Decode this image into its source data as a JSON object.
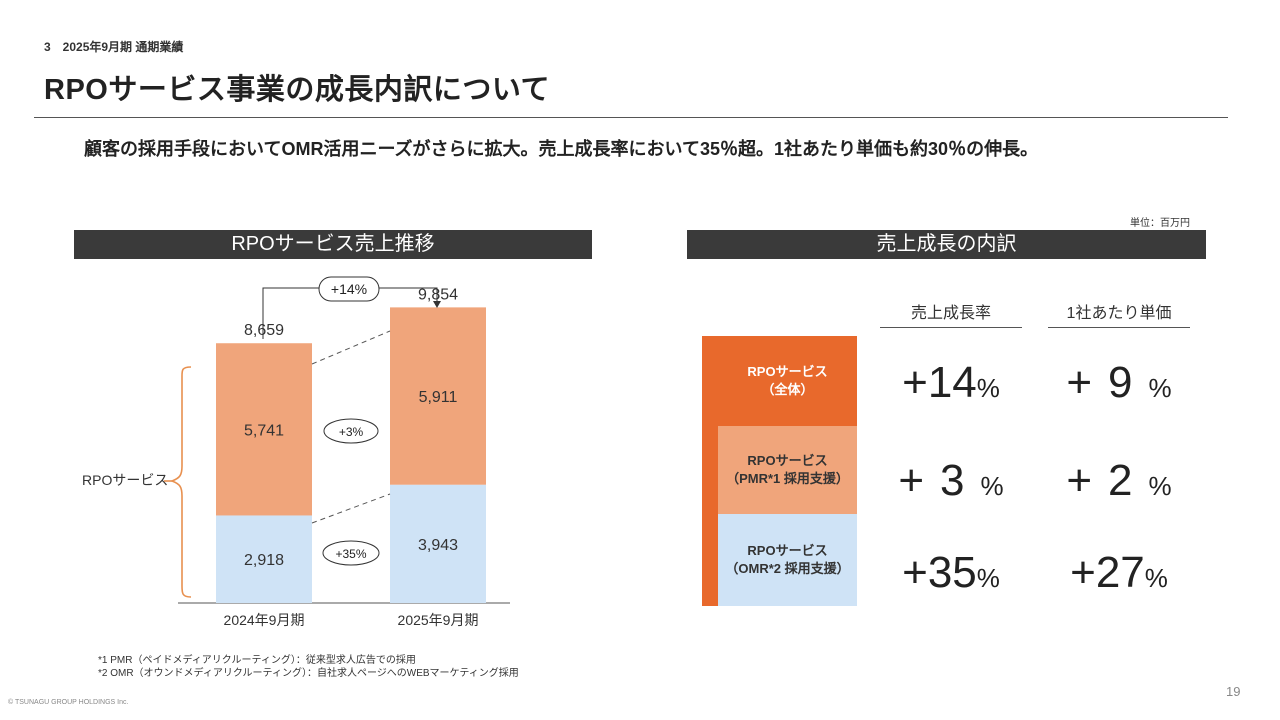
{
  "header": {
    "section": "3　2025年9月期 通期業績",
    "title": "RPOサービス事業の成長内訳について",
    "lead": "顧客の採用手段においてOMR活用ニーズがさらに拡大。売上成長率において35％超。1社あたり単価も約30％の伸長。",
    "unit": "単位：百万円"
  },
  "left_panel": {
    "heading": "RPOサービス売上推移",
    "bracket_label": "RPOサービス",
    "growth_total": "+14%",
    "growth_pmr": "+3%",
    "growth_omr": "+35%"
  },
  "right_panel": {
    "heading": "売上成長の内訳",
    "col_growth": "売上成長率",
    "col_unit_price": "1社あたり単価",
    "rows": [
      {
        "label_line1": "RPOサービス",
        "label_line2": "（全体）",
        "growth_sign": "+",
        "growth_num": "14",
        "growth_pct": "%",
        "price_sign": "+",
        "price_num": "9",
        "price_pct": "%"
      },
      {
        "label_line1": "RPOサービス",
        "label_line2": "（PMR*1 採用支援）",
        "growth_sign": "+",
        "growth_num": "3",
        "growth_pct": "%",
        "price_sign": "+",
        "price_num": "2",
        "price_pct": "%"
      },
      {
        "label_line1": "RPOサービス",
        "label_line2": "（OMR*2 採用支援）",
        "growth_sign": "+",
        "growth_num": "35",
        "growth_pct": "%",
        "price_sign": "+",
        "price_num": "27",
        "price_pct": "%"
      }
    ],
    "colors": {
      "total": "#e8692c",
      "pmr": "#f0a57b",
      "omr": "#cfe3f6"
    }
  },
  "footnotes": {
    "note1": "*1 PMR（ペイドメディアリクルーティング）：従来型求人広告での採用",
    "note2": "*2 OMR（オウンドメディアリクルーティング）：自社求人ページへのWEBマーケティング採用"
  },
  "footer": {
    "copyright": "© TSUNAGU GROUP HOLDINGS Inc.",
    "page": "19"
  },
  "chart_data": {
    "type": "bar",
    "stacked": true,
    "categories": [
      "2024年9月期",
      "2025年9月期"
    ],
    "series": [
      {
        "name": "OMR",
        "values": [
          2918,
          3943
        ],
        "color": "#cfe3f6"
      },
      {
        "name": "PMR",
        "values": [
          5741,
          5911
        ],
        "color": "#f0a57b"
      }
    ],
    "totals": [
      8659,
      9854
    ],
    "value_labels": {
      "OMR": [
        "2,918",
        "3,943"
      ],
      "PMR": [
        "5,741",
        "5,911"
      ],
      "totals": [
        "8,659",
        "9,854"
      ]
    },
    "ylim": [
      0,
      10000
    ],
    "grid": false,
    "legend": "none"
  }
}
